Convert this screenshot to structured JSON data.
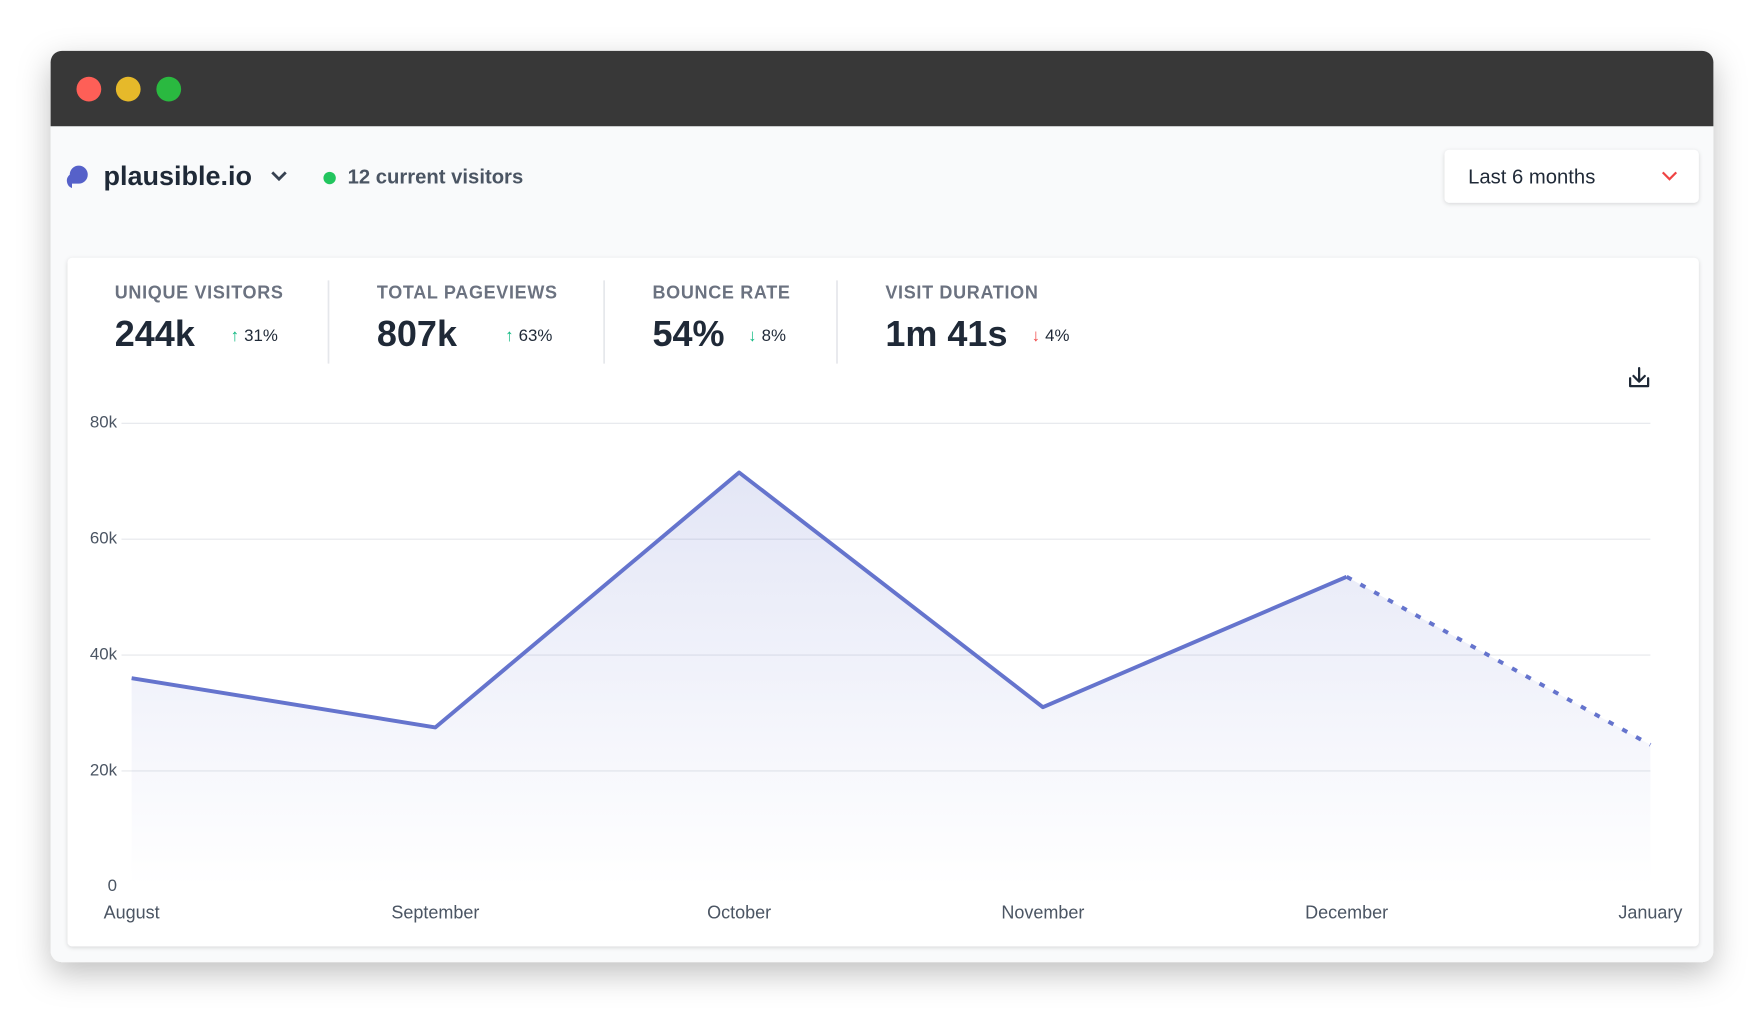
{
  "header": {
    "site": "plausible.io",
    "current_visitors": "12 current visitors",
    "period": "Last 6 months"
  },
  "stats": [
    {
      "label": "UNIQUE VISITORS",
      "value": "244k",
      "arrow": "↑",
      "change": "31%",
      "arrow_color": "#10b981"
    },
    {
      "label": "TOTAL PAGEVIEWS",
      "value": "807k",
      "arrow": "↑",
      "change": "63%",
      "arrow_color": "#10b981"
    },
    {
      "label": "BOUNCE RATE",
      "value": "54%",
      "arrow": "↓",
      "change": "8%",
      "arrow_color": "#10b981"
    },
    {
      "label": "VISIT DURATION",
      "value": "1m 41s",
      "arrow": "↓",
      "change": "4%",
      "arrow_color": "#ef4444"
    }
  ],
  "chart_data": {
    "type": "line",
    "categories": [
      "August",
      "September",
      "October",
      "November",
      "December",
      "January"
    ],
    "values": [
      36000,
      27500,
      71500,
      31000,
      53500,
      24500
    ],
    "color": "#6574cd",
    "ylim": [
      0,
      80000
    ],
    "yticks": [
      0,
      {
        "value": 20000,
        "label": "20k"
      },
      {
        "value": 40000,
        "label": "40k"
      },
      {
        "value": 60000,
        "label": "60k"
      },
      {
        "value": 80000,
        "label": "80k"
      }
    ],
    "grid": true,
    "dashed_last_segment": true
  }
}
